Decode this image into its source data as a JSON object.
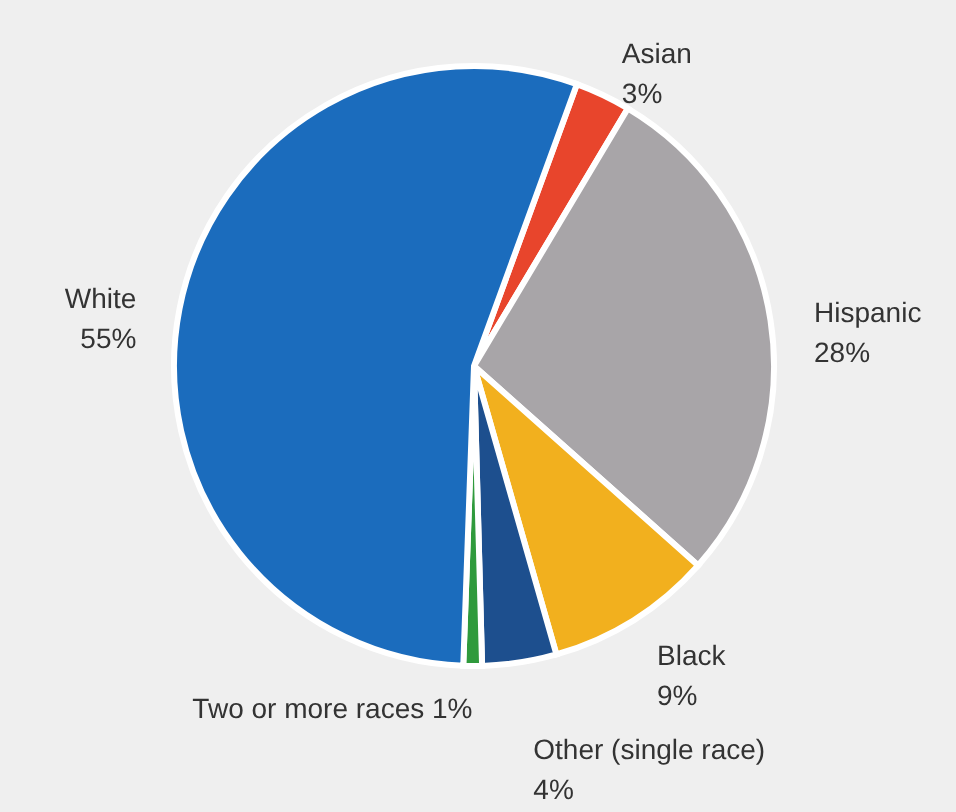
{
  "chart_data": {
    "type": "pie",
    "categories": [
      "Asian",
      "Hispanic",
      "Black",
      "Other (single race)",
      "Two or more races",
      "White"
    ],
    "values": [
      3,
      28,
      9,
      4,
      1,
      55
    ],
    "value_labels": [
      "3%",
      "28%",
      "9%",
      "4%",
      "1%",
      "55%"
    ],
    "colors": [
      "#e8452c",
      "#a8a5a8",
      "#f2b01e",
      "#1d4f8e",
      "#2f9a3c",
      "#1b6cbd"
    ]
  }
}
